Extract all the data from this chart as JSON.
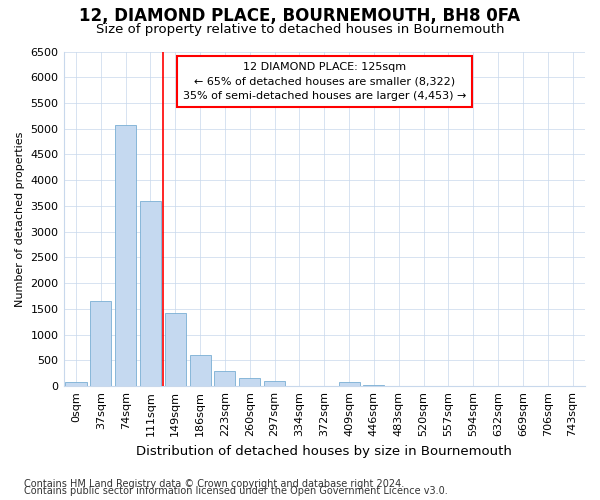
{
  "title": "12, DIAMOND PLACE, BOURNEMOUTH, BH8 0FA",
  "subtitle": "Size of property relative to detached houses in Bournemouth",
  "xlabel": "Distribution of detached houses by size in Bournemouth",
  "ylabel": "Number of detached properties",
  "categories": [
    "0sqm",
    "37sqm",
    "74sqm",
    "111sqm",
    "149sqm",
    "186sqm",
    "223sqm",
    "260sqm",
    "297sqm",
    "334sqm",
    "372sqm",
    "409sqm",
    "446sqm",
    "483sqm",
    "520sqm",
    "557sqm",
    "594sqm",
    "632sqm",
    "669sqm",
    "706sqm",
    "743sqm"
  ],
  "bar_values": [
    75,
    1650,
    5075,
    3600,
    1425,
    610,
    290,
    155,
    100,
    0,
    0,
    75,
    15,
    0,
    0,
    0,
    0,
    0,
    0,
    0,
    0
  ],
  "bar_color": "#c5d9f0",
  "bar_edge_color": "#7aafd4",
  "red_line_x": 3.5,
  "annotation_line1": "12 DIAMOND PLACE: 125sqm",
  "annotation_line2": "← 65% of detached houses are smaller (8,322)",
  "annotation_line3": "35% of semi-detached houses are larger (4,453) →",
  "ylim": [
    0,
    6500
  ],
  "yticks": [
    0,
    500,
    1000,
    1500,
    2000,
    2500,
    3000,
    3500,
    4000,
    4500,
    5000,
    5500,
    6000,
    6500
  ],
  "footnote1": "Contains HM Land Registry data © Crown copyright and database right 2024.",
  "footnote2": "Contains public sector information licensed under the Open Government Licence v3.0.",
  "bg_color": "#ffffff",
  "plot_bg_color": "#ffffff",
  "grid_color": "#c8d8ec",
  "title_fontsize": 12,
  "subtitle_fontsize": 9.5,
  "xlabel_fontsize": 9.5,
  "ylabel_fontsize": 8,
  "tick_fontsize": 8,
  "annotation_fontsize": 8,
  "footnote_fontsize": 7
}
